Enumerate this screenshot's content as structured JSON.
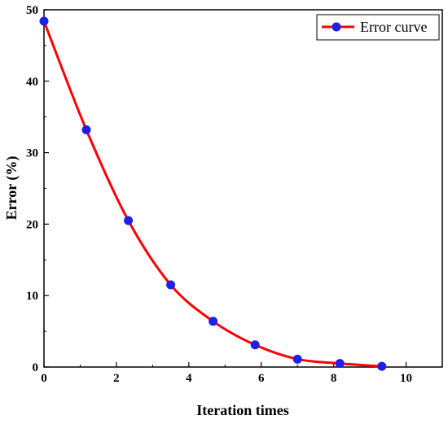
{
  "chart_data": {
    "type": "line",
    "xlabel": "Iteration times",
    "ylabel": "Error (%)",
    "xlim": [
      0,
      11
    ],
    "ylim": [
      0,
      50
    ],
    "x_ticks": [
      0,
      2,
      4,
      6,
      8,
      10
    ],
    "y_ticks": [
      0,
      10,
      20,
      30,
      40,
      50
    ],
    "grid": false,
    "legend_position": "top-right",
    "series": [
      {
        "name": "Error curve",
        "line_color": "#ff0000",
        "marker_color": "#1f1fe6",
        "x": [
          0,
          1.17,
          2.33,
          3.5,
          4.67,
          5.83,
          7.0,
          8.17,
          9.33
        ],
        "y": [
          48.4,
          33.2,
          20.5,
          11.5,
          6.4,
          3.1,
          1.1,
          0.5,
          0.1
        ]
      }
    ]
  }
}
